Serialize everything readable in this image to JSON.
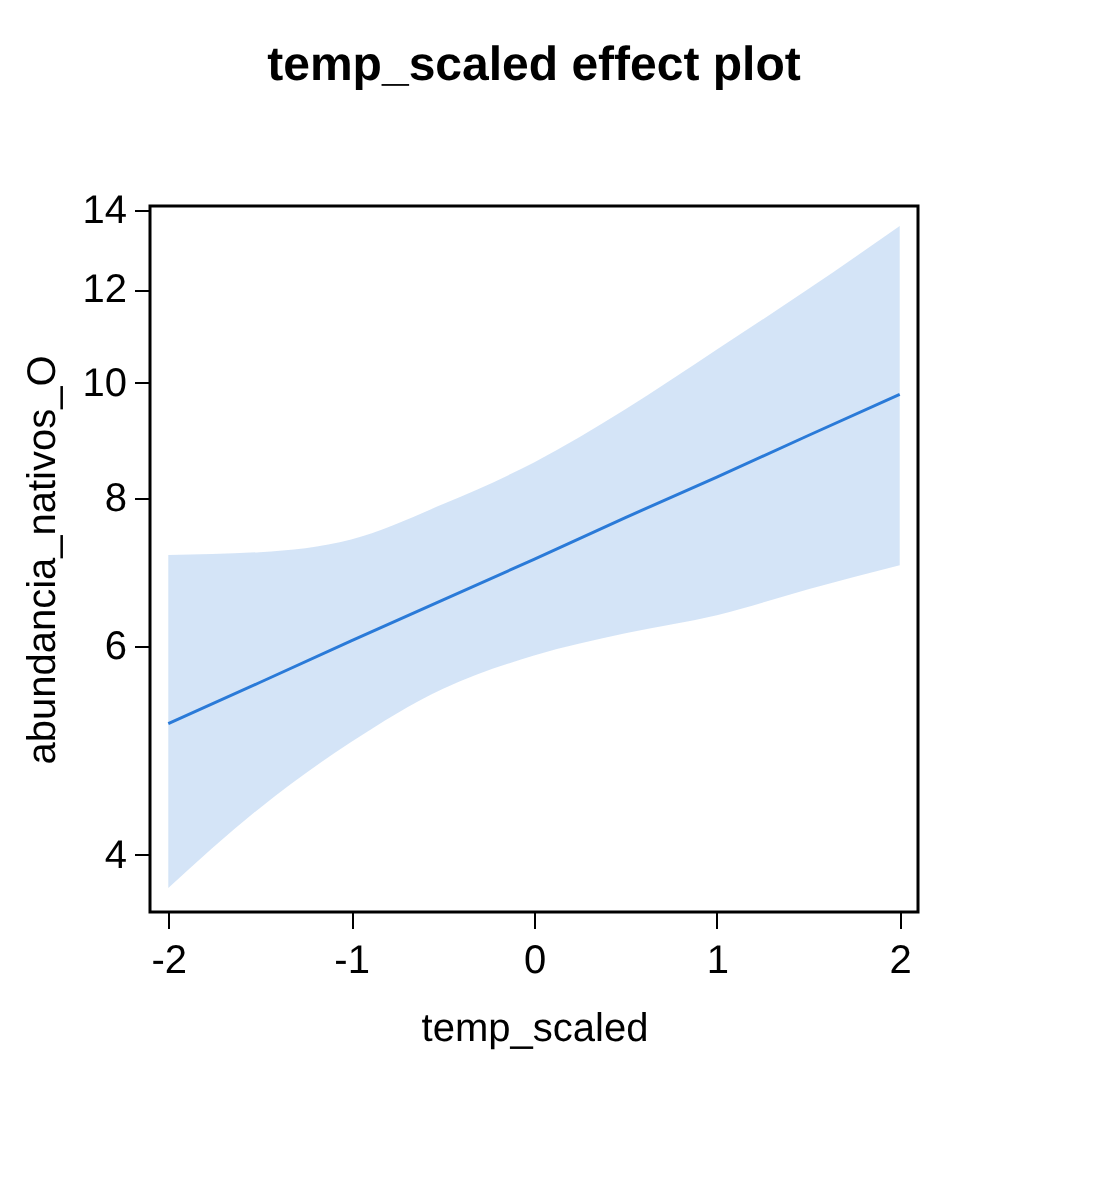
{
  "chart_data": {
    "type": "line",
    "title": "temp_scaled effect plot",
    "xlabel": "temp_scaled",
    "ylabel": "abundancia_nativos_O",
    "x": [
      -2,
      -1.5,
      -1,
      -0.5,
      0,
      0.5,
      1,
      1.5,
      2
    ],
    "series": [
      {
        "color": "#2a7ad8",
        "values": [
          5.16,
          5.59,
          6.06,
          6.56,
          7.1,
          7.7,
          8.33,
          9.03,
          9.78
        ],
        "lower": [
          3.75,
          4.38,
          4.98,
          5.52,
          5.89,
          6.15,
          6.37,
          6.7,
          7.02
        ],
        "upper": [
          7.16,
          7.2,
          7.38,
          7.9,
          8.57,
          9.5,
          10.67,
          12.0,
          13.56
        ]
      }
    ],
    "xlim": [
      -2.1,
      2.1
    ],
    "xticks": [
      -2,
      -1,
      0,
      1,
      2
    ],
    "ylim": [
      3.58,
      14.1
    ],
    "yticks": [
      4,
      6,
      8,
      10,
      12,
      14
    ],
    "log": "y",
    "grid": false,
    "marker": "none",
    "line_style": "solid"
  }
}
